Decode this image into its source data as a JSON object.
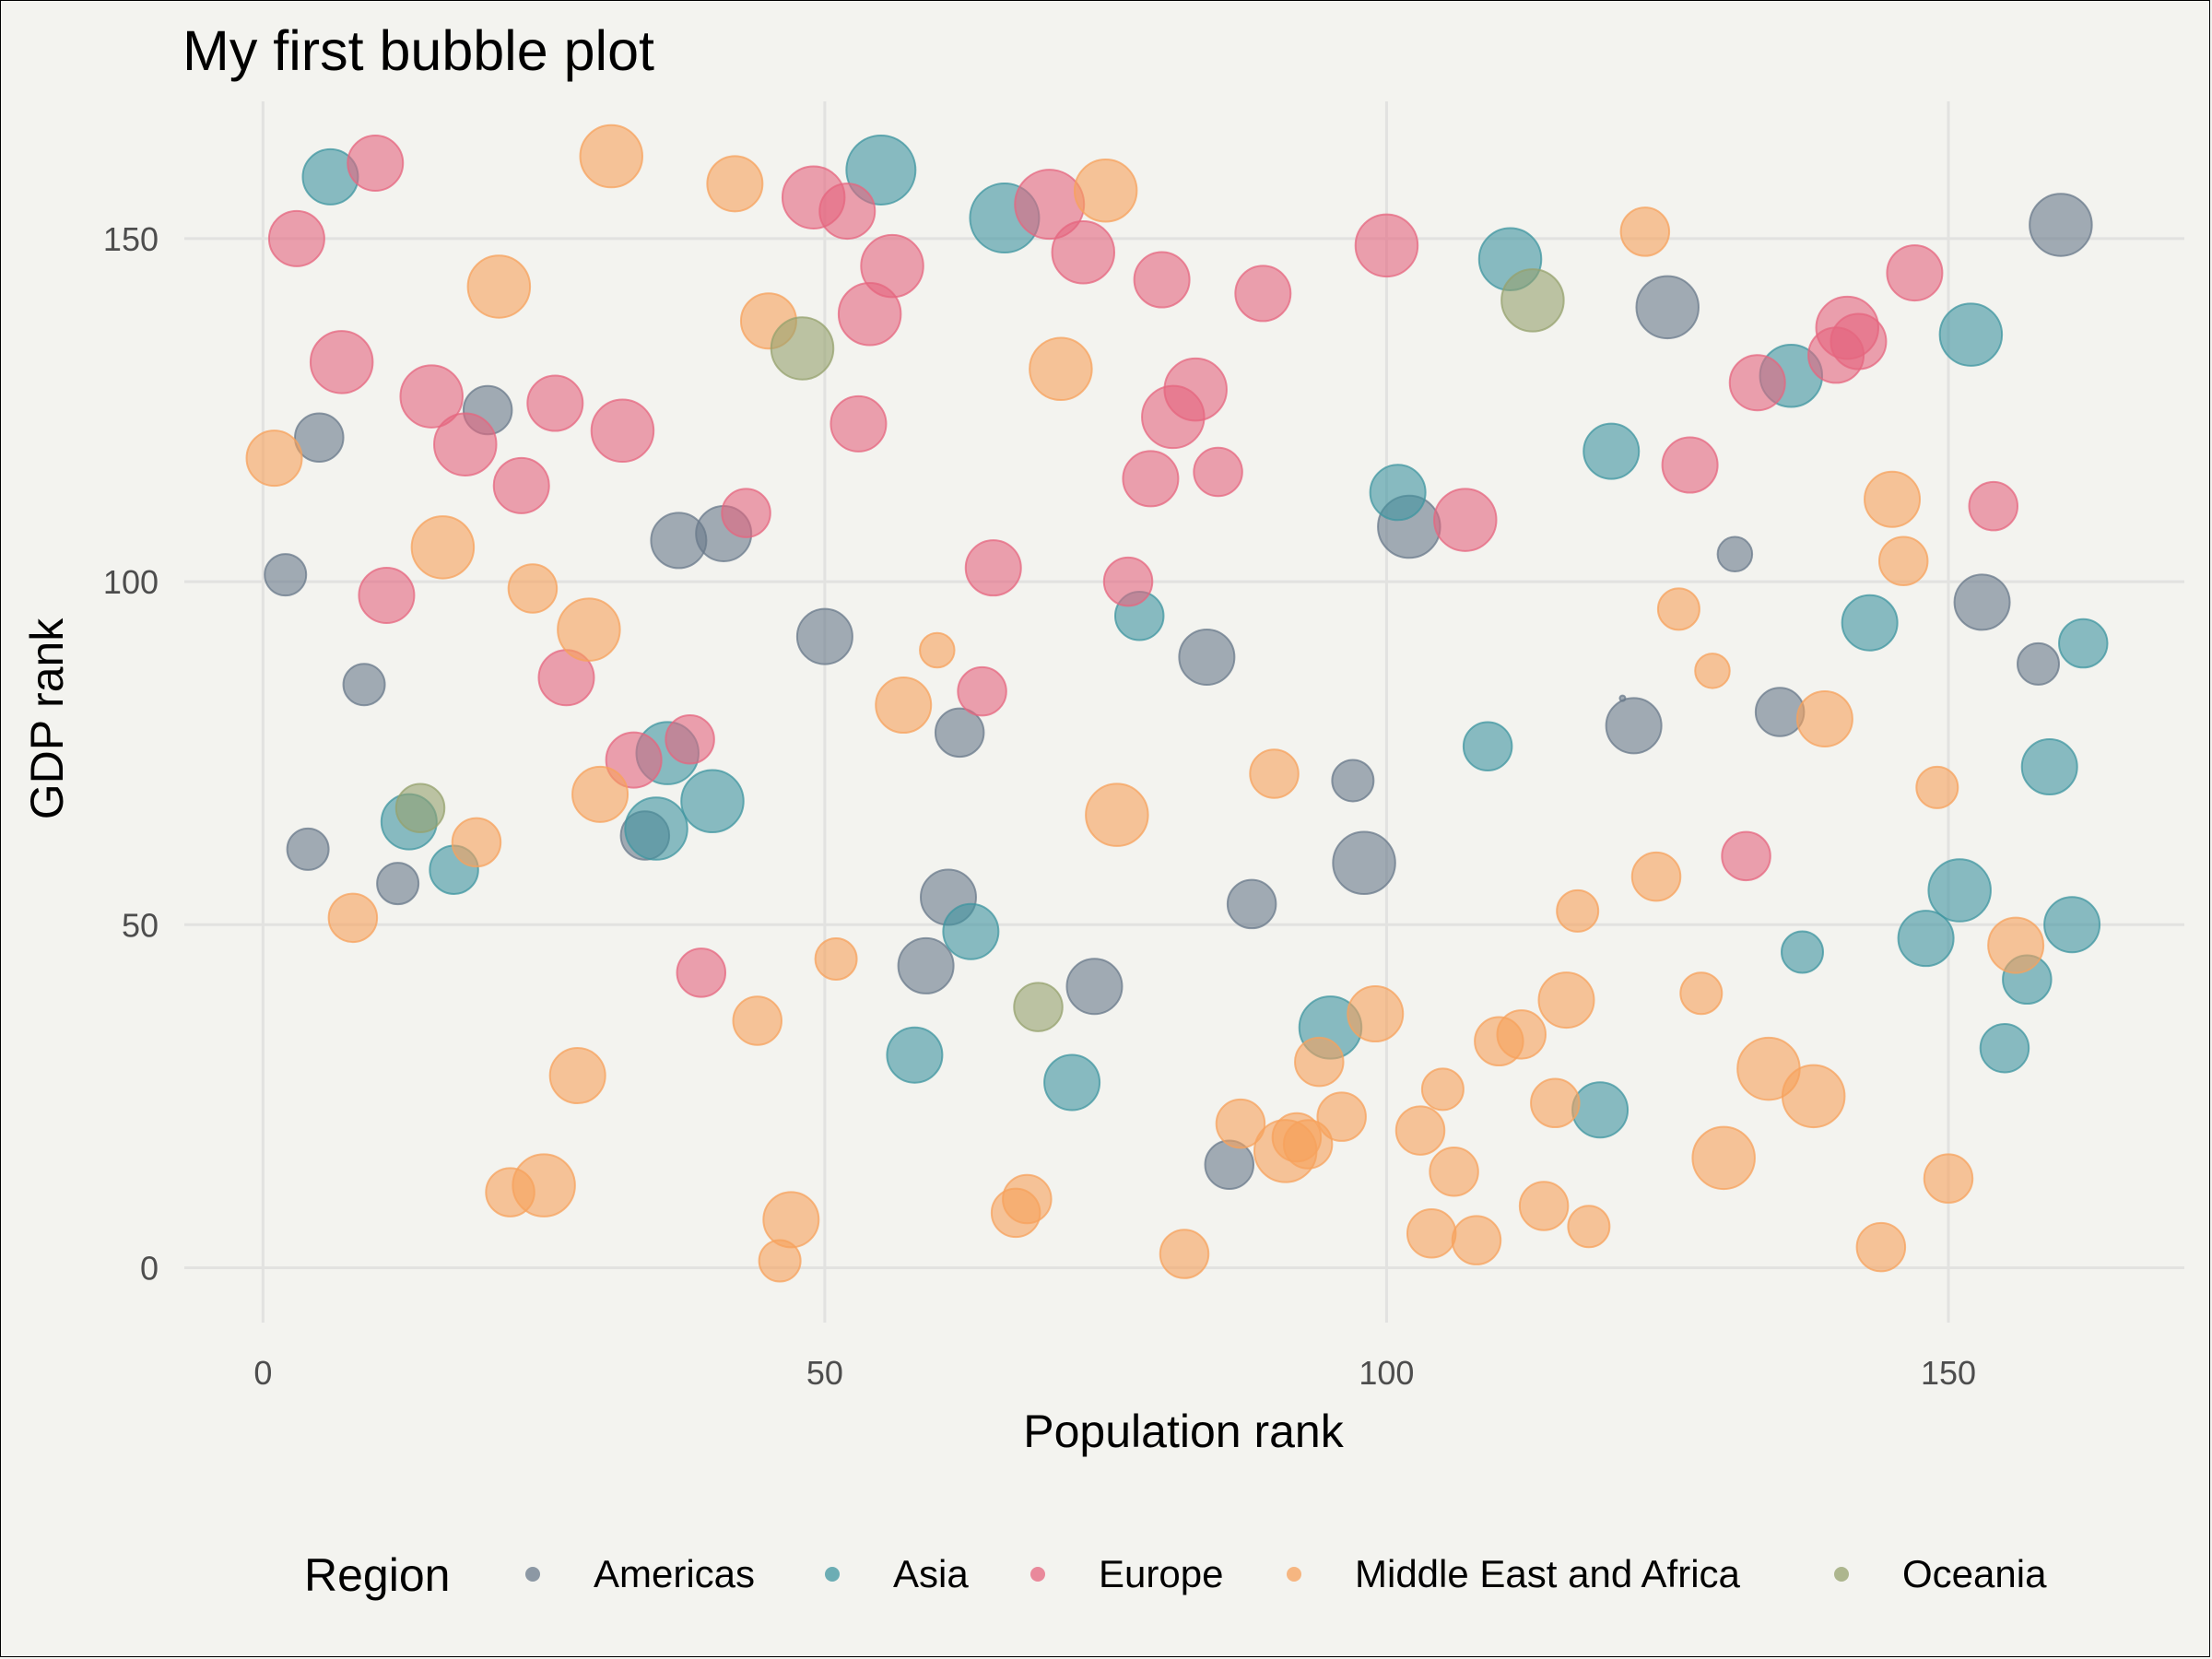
{
  "chart_data": {
    "type": "scatter",
    "title": "My first bubble plot",
    "xlabel": "Population rank",
    "ylabel": "GDP rank",
    "xlim": [
      -7,
      171
    ],
    "ylim": [
      -8,
      170
    ],
    "xticks": [
      0,
      50,
      100,
      150
    ],
    "yticks": [
      0,
      50,
      100,
      150
    ],
    "grid": true,
    "legend": {
      "title": "Region",
      "placement": "bottom"
    },
    "series": [
      {
        "name": "Americas",
        "color": "#69798b",
        "points": [
          [
            2,
            101,
            3
          ],
          [
            4,
            61,
            3
          ],
          [
            5,
            121,
            3.5
          ],
          [
            9,
            85,
            3
          ],
          [
            12,
            56,
            3
          ],
          [
            20,
            125,
            3.5
          ],
          [
            34,
            63,
            3.5
          ],
          [
            37,
            106,
            4
          ],
          [
            41,
            107,
            4
          ],
          [
            50,
            92,
            4
          ],
          [
            59,
            44,
            4
          ],
          [
            61,
            54,
            4
          ],
          [
            62,
            78,
            3.5
          ],
          [
            74,
            41,
            4
          ],
          [
            84,
            89,
            4
          ],
          [
            86,
            15,
            3.5
          ],
          [
            88,
            53,
            3.5
          ],
          [
            97,
            71,
            3
          ],
          [
            98,
            59,
            4.5
          ],
          [
            102,
            108,
            4.5
          ],
          [
            121,
            83,
            0.4
          ],
          [
            122,
            79,
            4
          ],
          [
            125,
            140,
            4.5
          ],
          [
            131,
            104,
            2.5
          ],
          [
            135,
            81,
            3.5
          ],
          [
            158,
            88,
            3
          ],
          [
            153,
            97,
            4
          ],
          [
            160,
            152,
            4.5
          ]
        ]
      },
      {
        "name": "Asia",
        "color": "#3f95a0",
        "points": [
          [
            6,
            159,
            4
          ],
          [
            13,
            65,
            4
          ],
          [
            17,
            58,
            3.5
          ],
          [
            35,
            64,
            4.5
          ],
          [
            36,
            75,
            4.5
          ],
          [
            40,
            68,
            4.5
          ],
          [
            55,
            160,
            5
          ],
          [
            58,
            31,
            4
          ],
          [
            63,
            49,
            4
          ],
          [
            66,
            153,
            5
          ],
          [
            72,
            27,
            4
          ],
          [
            78,
            95,
            3.5
          ],
          [
            95,
            35,
            4.5
          ],
          [
            101,
            113,
            4
          ],
          [
            109,
            76,
            3.5
          ],
          [
            111,
            147,
            4.5
          ],
          [
            119,
            23,
            4
          ],
          [
            120,
            119,
            4
          ],
          [
            136,
            130,
            4.5
          ],
          [
            137,
            46,
            3
          ],
          [
            143,
            94,
            4
          ],
          [
            148,
            48,
            4
          ],
          [
            151,
            55,
            4.5
          ],
          [
            152,
            136,
            4.5
          ],
          [
            155,
            32,
            3.5
          ],
          [
            157,
            42,
            3.5
          ],
          [
            159,
            73,
            4
          ],
          [
            161,
            50,
            4
          ],
          [
            162,
            91,
            3.5
          ]
        ]
      },
      {
        "name": "Europe",
        "color": "#e5667f",
        "points": [
          [
            3,
            150,
            4
          ],
          [
            7,
            132,
            4.5
          ],
          [
            10,
            161,
            4
          ],
          [
            11,
            98,
            4
          ],
          [
            15,
            127,
            4.5
          ],
          [
            18,
            120,
            4.5
          ],
          [
            23,
            114,
            4
          ],
          [
            26,
            126,
            4
          ],
          [
            27,
            86,
            4
          ],
          [
            32,
            122,
            4.5
          ],
          [
            33,
            74,
            4
          ],
          [
            38,
            77,
            3.5
          ],
          [
            39,
            43,
            3.5
          ],
          [
            43,
            110,
            3.5
          ],
          [
            49,
            156,
            4.5
          ],
          [
            52,
            154,
            4
          ],
          [
            53,
            123,
            4
          ],
          [
            54,
            139,
            4.5
          ],
          [
            56,
            146,
            4.5
          ],
          [
            64,
            84,
            3.5
          ],
          [
            65,
            102,
            4
          ],
          [
            70,
            155,
            5
          ],
          [
            73,
            148,
            4.5
          ],
          [
            77,
            100,
            3.5
          ],
          [
            79,
            115,
            4
          ],
          [
            80,
            144,
            4
          ],
          [
            81,
            124,
            4.5
          ],
          [
            83,
            128,
            4.5
          ],
          [
            85,
            116,
            3.5
          ],
          [
            89,
            142,
            4
          ],
          [
            100,
            149,
            4.5
          ],
          [
            107,
            109,
            4.5
          ],
          [
            127,
            117,
            4
          ],
          [
            132,
            60,
            3.5
          ],
          [
            133,
            129,
            4
          ],
          [
            140,
            133,
            4
          ],
          [
            141,
            137,
            4.5
          ],
          [
            142,
            135,
            4
          ],
          [
            147,
            145,
            4
          ],
          [
            154,
            111,
            3.5
          ]
        ]
      },
      {
        "name": "Middle East and Africa",
        "color": "#f7a15c",
        "points": [
          [
            1,
            118,
            4
          ],
          [
            8,
            51,
            3.5
          ],
          [
            16,
            105,
            4.5
          ],
          [
            19,
            62,
            3.5
          ],
          [
            21,
            143,
            4.5
          ],
          [
            22,
            11,
            3.5
          ],
          [
            24,
            99,
            3.5
          ],
          [
            25,
            12,
            4.5
          ],
          [
            28,
            28,
            4
          ],
          [
            29,
            93,
            4.5
          ],
          [
            30,
            69,
            4
          ],
          [
            31,
            162,
            4.5
          ],
          [
            42,
            158,
            4
          ],
          [
            44,
            36,
            3.5
          ],
          [
            45,
            138,
            4
          ],
          [
            46,
            1,
            3
          ],
          [
            47,
            7,
            4
          ],
          [
            51,
            45,
            3
          ],
          [
            57,
            82,
            4
          ],
          [
            60,
            90,
            2.5
          ],
          [
            67,
            8,
            3.5
          ],
          [
            68,
            10,
            3.5
          ],
          [
            71,
            131,
            4.5
          ],
          [
            75,
            157,
            4.5
          ],
          [
            76,
            66,
            4.5
          ],
          [
            82,
            2,
            3.5
          ],
          [
            87,
            21,
            3.5
          ],
          [
            90,
            72,
            3.5
          ],
          [
            91,
            17,
            4.5
          ],
          [
            92,
            19,
            3.5
          ],
          [
            93,
            18,
            3.5
          ],
          [
            94,
            30,
            3.5
          ],
          [
            96,
            22,
            3.5
          ],
          [
            99,
            37,
            4
          ],
          [
            103,
            20,
            3.5
          ],
          [
            104,
            5,
            3.5
          ],
          [
            105,
            26,
            3
          ],
          [
            106,
            14,
            3.5
          ],
          [
            108,
            4,
            3.5
          ],
          [
            110,
            33,
            3.5
          ],
          [
            112,
            34,
            3.5
          ],
          [
            114,
            9,
            3.5
          ],
          [
            115,
            24,
            3.5
          ],
          [
            116,
            39,
            4
          ],
          [
            117,
            52,
            3
          ],
          [
            118,
            6,
            3
          ],
          [
            123,
            151,
            3.5
          ],
          [
            124,
            57,
            3.5
          ],
          [
            126,
            96,
            3
          ],
          [
            128,
            40,
            3
          ],
          [
            129,
            87,
            2.5
          ],
          [
            130,
            16,
            4.5
          ],
          [
            134,
            29,
            4.5
          ],
          [
            138,
            25,
            4.5
          ],
          [
            139,
            80,
            4
          ],
          [
            144,
            3,
            3.5
          ],
          [
            145,
            112,
            4
          ],
          [
            146,
            103,
            3.5
          ],
          [
            149,
            70,
            3
          ],
          [
            150,
            13,
            3.5
          ],
          [
            156,
            47,
            4
          ]
        ]
      },
      {
        "name": "Oceania",
        "color": "#96a26e",
        "points": [
          [
            14,
            67,
            3.5
          ],
          [
            48,
            134,
            4.5
          ],
          [
            69,
            38,
            3.5
          ],
          [
            113,
            141,
            4.5
          ]
        ]
      }
    ]
  }
}
